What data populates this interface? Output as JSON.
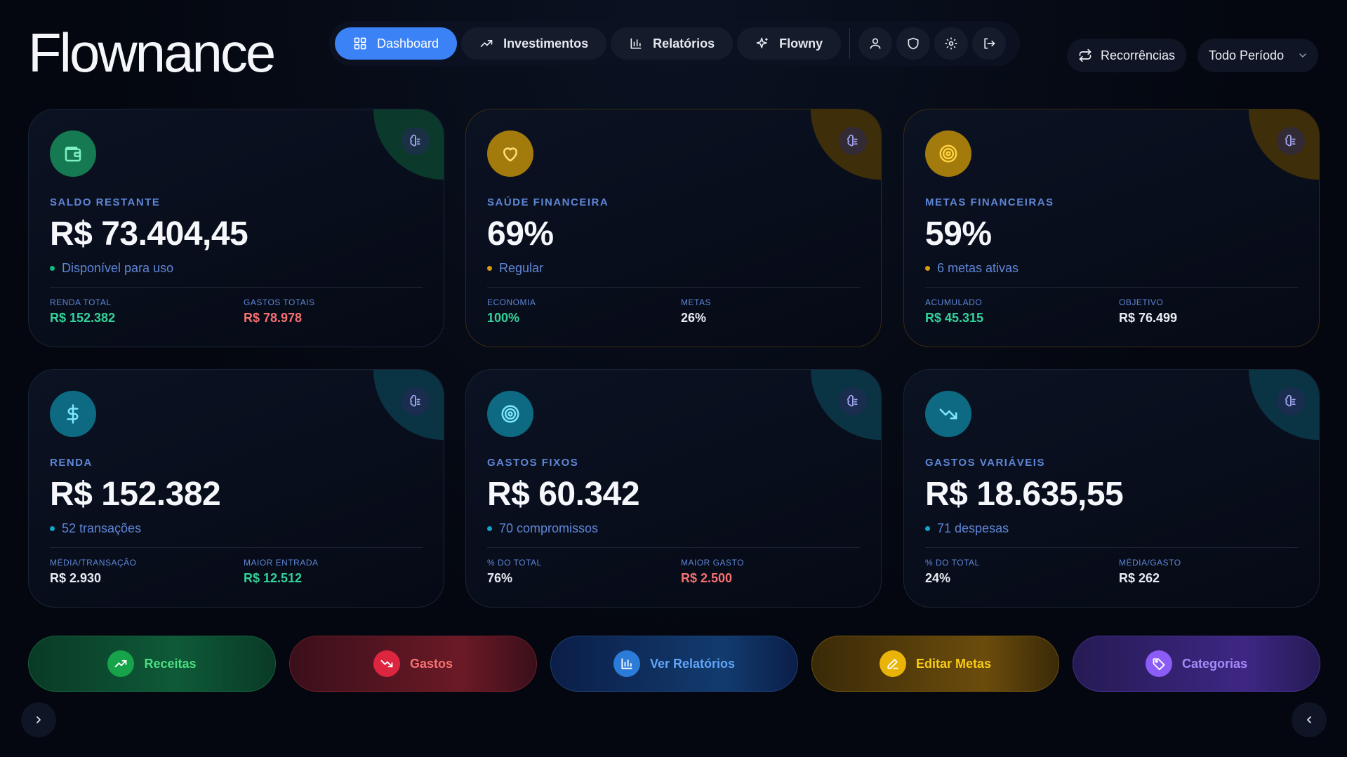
{
  "app": {
    "logo": "Flownance"
  },
  "nav": {
    "dashboard": "Dashboard",
    "investimentos": "Investimentos",
    "relatorios": "Relatórios",
    "flowny": "Flowny"
  },
  "header": {
    "recorrencias": "Recorrências",
    "period": "Todo Período"
  },
  "cards": [
    {
      "label": "SALDO RESTANTE",
      "value": "R$ 73.404,45",
      "sub": "Disponível para uso",
      "stats": [
        {
          "k": "RENDA TOTAL",
          "v": "R$ 152.382"
        },
        {
          "k": "GASTOS TOTAIS",
          "v": "R$ 78.978"
        }
      ]
    },
    {
      "label": "SAÚDE FINANCEIRA",
      "value": "69%",
      "sub": "Regular",
      "stats": [
        {
          "k": "ECONOMIA",
          "v": "100%"
        },
        {
          "k": "METAS",
          "v": "26%"
        }
      ]
    },
    {
      "label": "METAS FINANCEIRAS",
      "value": "59%",
      "sub": "6 metas ativas",
      "stats": [
        {
          "k": "ACUMULADO",
          "v": "R$ 45.315"
        },
        {
          "k": "OBJETIVO",
          "v": "R$ 76.499"
        }
      ]
    },
    {
      "label": "RENDA",
      "value": "R$ 152.382",
      "sub": "52 transações",
      "stats": [
        {
          "k": "MÉDIA/TRANSAÇÃO",
          "v": "R$ 2.930"
        },
        {
          "k": "MAIOR ENTRADA",
          "v": "R$ 12.512"
        }
      ]
    },
    {
      "label": "GASTOS FIXOS",
      "value": "R$ 60.342",
      "sub": "70 compromissos",
      "stats": [
        {
          "k": "% DO TOTAL",
          "v": "76%"
        },
        {
          "k": "MAIOR GASTO",
          "v": "R$ 2.500"
        }
      ]
    },
    {
      "label": "GASTOS VARIÁVEIS",
      "value": "R$ 18.635,55",
      "sub": "71 despesas",
      "stats": [
        {
          "k": "% DO TOTAL",
          "v": "24%"
        },
        {
          "k": "MÉDIA/GASTO",
          "v": "R$ 262"
        }
      ]
    }
  ],
  "actions": {
    "receitas": "Receitas",
    "gastos": "Gastos",
    "relatorios": "Ver Relatórios",
    "metas": "Editar Metas",
    "categorias": "Categorias"
  },
  "colors": {
    "accent": "#3b82f6",
    "green": "#34d399",
    "red": "#f87171",
    "gold": "#eab308",
    "teal": "#0e7490",
    "purple": "#8b5cf6"
  }
}
